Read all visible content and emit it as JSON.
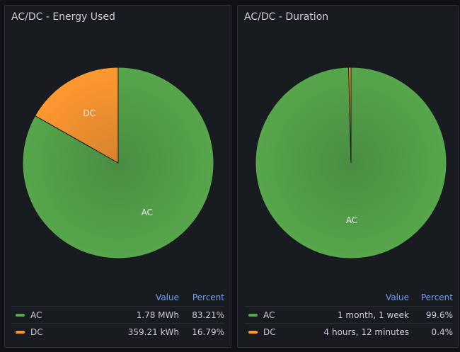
{
  "chart_data": [
    {
      "type": "pie",
      "title": "AC/DC - Energy Used",
      "slices": [
        {
          "name": "AC",
          "value": 83.21,
          "display_value": "1.78 MWh",
          "percent": "83.21%",
          "color": "#56a64b"
        },
        {
          "name": "DC",
          "value": 16.79,
          "display_value": "359.21 kWh",
          "percent": "16.79%",
          "color": "#ff9830"
        }
      ],
      "legend": {
        "value_header": "Value",
        "percent_header": "Percent"
      }
    },
    {
      "type": "pie",
      "title": "AC/DC - Duration",
      "slices": [
        {
          "name": "AC",
          "value": 99.6,
          "display_value": "1 month, 1 week",
          "percent": "99.6%",
          "color": "#56a64b"
        },
        {
          "name": "DC",
          "value": 0.4,
          "display_value": "4 hours, 12 minutes",
          "percent": "0.4%",
          "color": "#ff9830"
        }
      ],
      "legend": {
        "value_header": "Value",
        "percent_header": "Percent"
      }
    }
  ]
}
